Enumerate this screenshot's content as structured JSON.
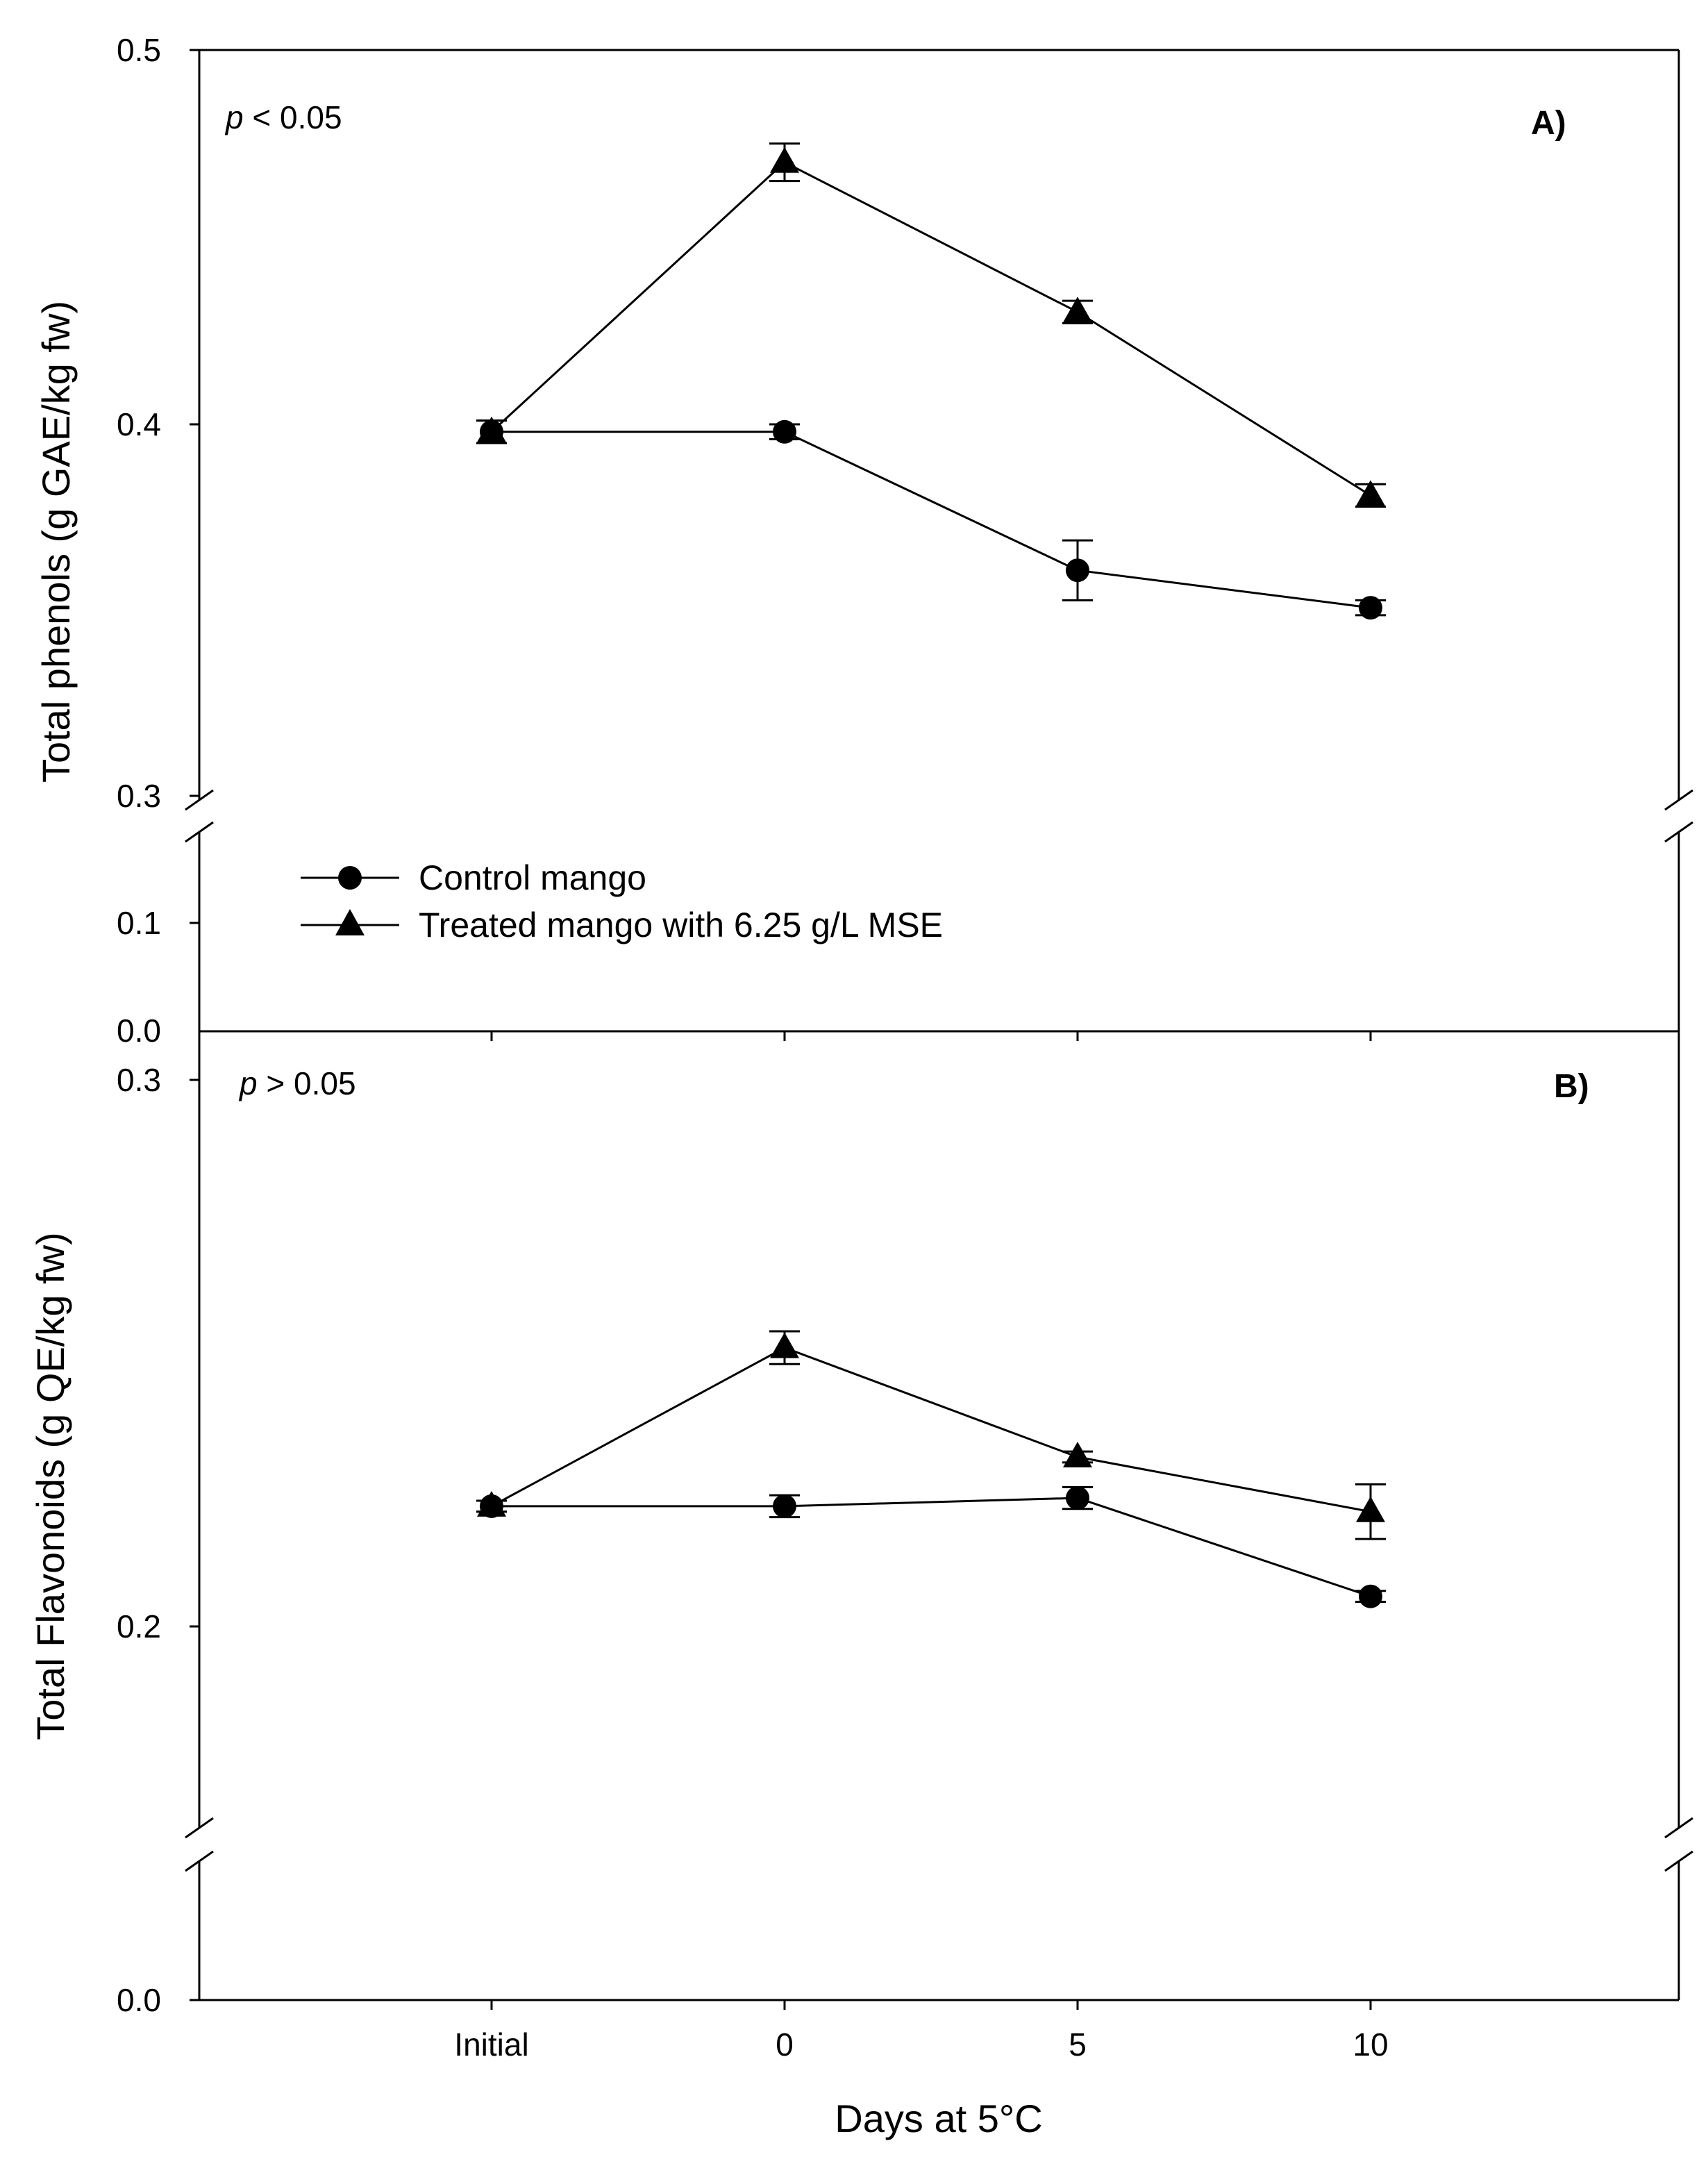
{
  "chart_data": {
    "type": "line",
    "categories": [
      "Initial",
      "0",
      "5",
      "10"
    ],
    "xlabel": "Days at 5°C",
    "legend": [
      {
        "name": "Control mango",
        "marker": "circle"
      },
      {
        "name": "Treated mango with 6.25 g/L MSE",
        "marker": "triangle"
      }
    ],
    "legend_position": "middle-left",
    "panels": [
      {
        "id": "A",
        "label": "A)",
        "stat_prefix": "p",
        "stat_suffix": " < 0.05",
        "ylabel": "Total phenols (g GAE/kg fw)",
        "ylim_lower": [
          0.0,
          0.15
        ],
        "ylim_upper": [
          0.3,
          0.5
        ],
        "axis_break_between": [
          0.15,
          0.3
        ],
        "yticks_lower": [
          {
            "value": 0.0,
            "label": "0.0"
          },
          {
            "value": 0.1,
            "label": "0.1"
          }
        ],
        "yticks_upper": [
          {
            "value": 0.3,
            "label": "0.3"
          },
          {
            "value": 0.4,
            "label": "0.4"
          },
          {
            "value": 0.5,
            "label": "0.5"
          }
        ],
        "series": [
          {
            "name": "Control mango",
            "marker": "circle",
            "values": [
              0.398,
              0.398,
              0.361,
              0.351
            ],
            "errors": [
              0.003,
              0.002,
              0.008,
              0.002
            ]
          },
          {
            "name": "Treated mango with 6.25 g/L MSE",
            "marker": "triangle",
            "values": [
              0.398,
              0.47,
              0.43,
              0.381
            ],
            "errors": [
              0.003,
              0.005,
              0.003,
              0.003
            ]
          }
        ]
      },
      {
        "id": "B",
        "label": "B)",
        "stat_prefix": "p",
        "stat_suffix": " > 0.05",
        "ylabel": "Total Flavonoids  (g QE/kg fw)",
        "ylim_lower": [
          0.0,
          0.1
        ],
        "ylim_upper": [
          0.15,
          0.31
        ],
        "axis_break_between": [
          0.1,
          0.15
        ],
        "yticks_lower": [
          {
            "value": 0.0,
            "label": "0.0"
          }
        ],
        "yticks_upper": [
          {
            "value": 0.2,
            "label": "0.2"
          },
          {
            "value": 0.3,
            "label": "0.3"
          }
        ],
        "series": [
          {
            "name": "Control mango",
            "marker": "circle",
            "values": [
              0.222,
              0.222,
              0.2235,
              0.2055
            ],
            "errors": [
              0.001,
              0.002,
              0.002,
              0.001
            ]
          },
          {
            "name": "Treated mango with 6.25 g/L MSE",
            "marker": "triangle",
            "values": [
              0.222,
              0.251,
              0.231,
              0.221
            ],
            "errors": [
              0.001,
              0.003,
              0.001,
              0.005
            ]
          }
        ]
      }
    ]
  }
}
